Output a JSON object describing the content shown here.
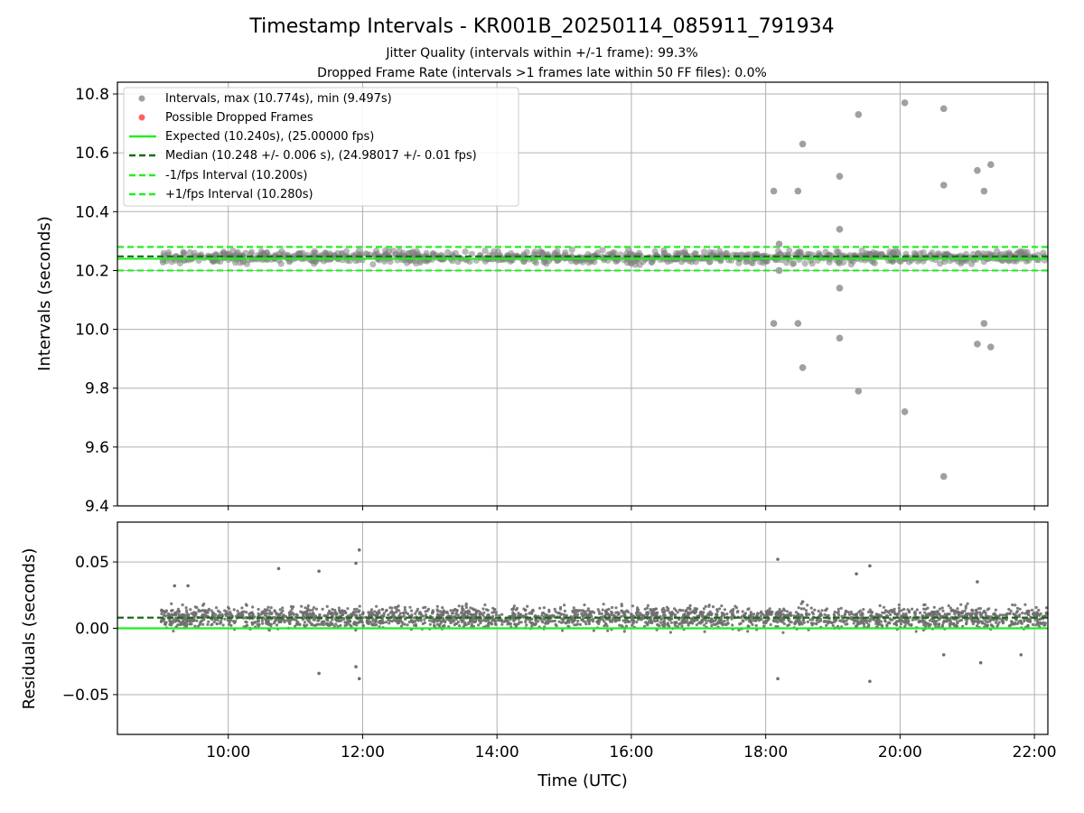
{
  "chart_data": [
    {
      "type": "scatter",
      "title": "Timestamp Intervals - KR001B_20250114_085911_791934",
      "subtitle_lines": [
        "Jitter Quality (intervals within +/-1 frame): 99.3%",
        "Dropped Frame Rate (intervals >1 frames late within 50 FF files): 0.0%"
      ],
      "xlabel": "",
      "ylabel": "Intervals (seconds)",
      "xlim_hours": [
        8.35,
        22.2
      ],
      "ylim": [
        9.4,
        10.84
      ],
      "x_ticks": [
        10,
        12,
        14,
        16,
        18,
        20,
        22
      ],
      "y_ticks": [
        9.4,
        9.6,
        9.8,
        10.0,
        10.2,
        10.4,
        10.6,
        10.8
      ],
      "y_tick_labels": [
        "9.4",
        "9.6",
        "9.8",
        "10.0",
        "10.2",
        "10.4",
        "10.6",
        "10.8"
      ],
      "grid": true,
      "legend_position": "top-left",
      "legend": [
        {
          "label": "Intervals, max (10.774s), min (9.497s)",
          "style": "dot",
          "color": "#a0a0a0"
        },
        {
          "label": "Possible Dropped Frames",
          "style": "dot",
          "color": "#ff6060"
        },
        {
          "label": "Expected (10.240s), (25.00000 fps)",
          "style": "solid",
          "color": "#22ee22"
        },
        {
          "label": "Median (10.248 +/- 0.006 s), (24.98017 +/- 0.01 fps)",
          "style": "dashed",
          "color": "#1a6b1a"
        },
        {
          "label": "-1/fps Interval (10.200s)",
          "style": "dashed",
          "color": "#22ee22"
        },
        {
          "label": "+1/fps Interval (10.280s)",
          "style": "dashed",
          "color": "#22ee22"
        }
      ],
      "reference_lines": {
        "expected": 10.24,
        "median": 10.248,
        "minus_one_fps": 10.2,
        "plus_one_fps": 10.28
      },
      "data_start_hour": 9.0,
      "band_center": 10.245,
      "band_halfwidth": 0.03,
      "outliers": [
        {
          "x": 18.12,
          "y": 10.47
        },
        {
          "x": 18.12,
          "y": 10.02
        },
        {
          "x": 18.2,
          "y": 10.29
        },
        {
          "x": 18.2,
          "y": 10.2
        },
        {
          "x": 18.48,
          "y": 10.47
        },
        {
          "x": 18.48,
          "y": 10.02
        },
        {
          "x": 18.55,
          "y": 10.63
        },
        {
          "x": 18.55,
          "y": 9.87
        },
        {
          "x": 19.1,
          "y": 10.52
        },
        {
          "x": 19.1,
          "y": 10.34
        },
        {
          "x": 19.1,
          "y": 10.14
        },
        {
          "x": 19.1,
          "y": 9.97
        },
        {
          "x": 19.38,
          "y": 10.73
        },
        {
          "x": 19.38,
          "y": 9.79
        },
        {
          "x": 20.07,
          "y": 10.77
        },
        {
          "x": 20.07,
          "y": 9.72
        },
        {
          "x": 20.65,
          "y": 10.75
        },
        {
          "x": 20.65,
          "y": 10.49
        },
        {
          "x": 20.65,
          "y": 9.5
        },
        {
          "x": 21.15,
          "y": 10.54
        },
        {
          "x": 21.15,
          "y": 9.95
        },
        {
          "x": 21.25,
          "y": 10.47
        },
        {
          "x": 21.25,
          "y": 10.02
        },
        {
          "x": 21.35,
          "y": 10.56
        },
        {
          "x": 21.35,
          "y": 9.94
        }
      ],
      "colors": {
        "points": "#a0a0a0",
        "band": "#808080",
        "expected": "#22ee22",
        "median": "#1a6b1a"
      }
    },
    {
      "type": "scatter",
      "xlabel": "Time (UTC)",
      "ylabel": "Residuals (seconds)",
      "xlim_hours": [
        8.35,
        22.2
      ],
      "ylim": [
        -0.08,
        0.08
      ],
      "x_ticks": [
        10,
        12,
        14,
        16,
        18,
        20,
        22
      ],
      "x_tick_labels": [
        "10:00",
        "12:00",
        "14:00",
        "16:00",
        "18:00",
        "20:00",
        "22:00"
      ],
      "y_ticks": [
        -0.05,
        0.0,
        0.05
      ],
      "y_tick_labels": [
        "−0.05",
        "0.00",
        "0.05"
      ],
      "grid": true,
      "reference_lines": {
        "zero": 0.0,
        "median_offset": 0.008
      },
      "data_start_hour": 9.0,
      "band_center": 0.008,
      "band_halfwidth": 0.012,
      "outliers": [
        {
          "x": 9.2,
          "y": 0.032
        },
        {
          "x": 9.4,
          "y": 0.032
        },
        {
          "x": 10.75,
          "y": 0.045
        },
        {
          "x": 11.35,
          "y": 0.043
        },
        {
          "x": 11.35,
          "y": -0.034
        },
        {
          "x": 11.9,
          "y": 0.049
        },
        {
          "x": 11.95,
          "y": 0.059
        },
        {
          "x": 11.9,
          "y": -0.029
        },
        {
          "x": 11.95,
          "y": -0.038
        },
        {
          "x": 18.18,
          "y": 0.052
        },
        {
          "x": 18.18,
          "y": -0.038
        },
        {
          "x": 18.55,
          "y": 0.02
        },
        {
          "x": 19.35,
          "y": 0.041
        },
        {
          "x": 19.55,
          "y": 0.047
        },
        {
          "x": 19.55,
          "y": -0.04
        },
        {
          "x": 20.65,
          "y": -0.02
        },
        {
          "x": 21.15,
          "y": 0.035
        },
        {
          "x": 21.2,
          "y": -0.026
        },
        {
          "x": 21.8,
          "y": -0.02
        }
      ],
      "colors": {
        "points": "#6e6e6e",
        "expected": "#22ee22",
        "median": "#1a6b1a"
      }
    }
  ]
}
